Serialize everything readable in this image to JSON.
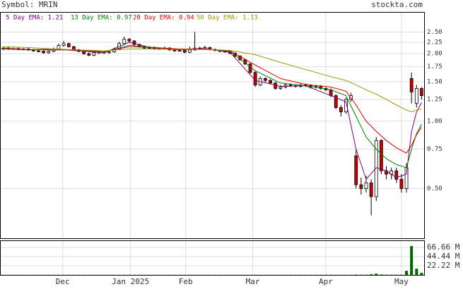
{
  "chart_data": {
    "type": "candlestick",
    "symbol_label": "Symbol: MRIN",
    "site": "stockta.com",
    "log_scale": true,
    "grid": true,
    "up_color": "#ffffff",
    "down_color": "#cc0000",
    "volume_color": "#006600",
    "xlim": [
      0,
      168
    ],
    "xticks": [
      {
        "value": 24.6,
        "label": "Dec"
      },
      {
        "value": 51.5,
        "label": "Jan 2025"
      },
      {
        "value": 73.4,
        "label": "Feb"
      },
      {
        "value": 100,
        "label": "Mar"
      },
      {
        "value": 129,
        "label": "Apr"
      },
      {
        "value": 159,
        "label": "May"
      }
    ],
    "ylim": [
      0.3,
      3.05
    ],
    "yticks": [
      {
        "value": 0.5,
        "label": "0.50"
      },
      {
        "value": 0.75,
        "label": "0.75"
      },
      {
        "value": 1,
        "label": "1.00"
      },
      {
        "value": 1.25,
        "label": "1.25"
      },
      {
        "value": 1.5,
        "label": "1.50"
      },
      {
        "value": 1.75,
        "label": "1.75"
      },
      {
        "value": 2,
        "label": "2.00"
      },
      {
        "value": 2.25,
        "label": "2.25"
      },
      {
        "value": 2.5,
        "label": "2.50"
      }
    ],
    "vlim": [
      0,
      82
    ],
    "vticks": [
      {
        "value": 22.22,
        "label": "22.22 M"
      },
      {
        "value": 44.44,
        "label": "44.44 M"
      },
      {
        "value": 66.66,
        "label": "66.66 M"
      }
    ],
    "x": [
      1,
      3,
      5,
      7,
      9,
      11,
      13,
      15,
      17,
      19,
      21,
      23,
      25,
      27,
      29,
      31,
      33,
      35,
      37,
      39,
      41,
      43,
      45,
      47,
      49,
      51,
      53,
      55,
      57,
      59,
      61,
      63,
      65,
      67,
      69,
      71,
      73,
      75,
      77,
      79,
      81,
      83,
      85,
      87,
      89,
      91,
      93,
      95,
      97,
      99,
      101,
      103,
      105,
      107,
      109,
      111,
      113,
      115,
      117,
      119,
      121,
      123,
      125,
      127,
      129,
      131,
      133,
      135,
      137,
      139,
      141,
      143,
      145,
      147,
      149,
      151,
      153,
      155,
      157,
      159,
      161,
      163,
      165,
      167
    ],
    "open": [
      2.1,
      2.12,
      2.1,
      2.11,
      2.09,
      2.1,
      2.08,
      2.06,
      2.05,
      2.02,
      2.05,
      2.1,
      2.18,
      2.22,
      2.15,
      2.08,
      2.05,
      2.0,
      1.97,
      2.02,
      2.03,
      2.02,
      2.04,
      2.1,
      2.22,
      2.32,
      2.28,
      2.2,
      2.15,
      2.12,
      2.13,
      2.1,
      2.11,
      2.12,
      2.08,
      2.06,
      2.07,
      2.03,
      2.08,
      2.12,
      2.1,
      2.13,
      2.09,
      2.07,
      2.05,
      2.04,
      2.01,
      1.95,
      1.88,
      1.8,
      1.65,
      1.45,
      1.55,
      1.52,
      1.48,
      1.4,
      1.42,
      1.45,
      1.44,
      1.43,
      1.45,
      1.44,
      1.42,
      1.43,
      1.4,
      1.38,
      1.3,
      1.15,
      1.1,
      1.25,
      0.7,
      0.52,
      0.5,
      0.53,
      0.46,
      0.82,
      0.6,
      0.58,
      0.6,
      0.55,
      0.5,
      1.55,
      1.2,
      1.4
    ],
    "high": [
      2.15,
      2.14,
      2.13,
      2.13,
      2.12,
      2.12,
      2.1,
      2.08,
      2.07,
      2.07,
      2.13,
      2.22,
      2.28,
      2.24,
      2.17,
      2.1,
      2.07,
      2.03,
      2.04,
      2.06,
      2.06,
      2.06,
      2.13,
      2.26,
      2.38,
      2.35,
      2.3,
      2.22,
      2.18,
      2.16,
      2.16,
      2.13,
      2.15,
      2.14,
      2.1,
      2.09,
      2.09,
      2.15,
      2.5,
      2.15,
      2.17,
      2.15,
      2.11,
      2.09,
      2.07,
      2.06,
      2.03,
      1.97,
      1.9,
      1.82,
      1.67,
      1.58,
      1.57,
      1.54,
      1.5,
      1.45,
      1.48,
      1.47,
      1.46,
      1.47,
      1.47,
      1.46,
      1.45,
      1.45,
      1.42,
      1.4,
      1.32,
      1.18,
      1.27,
      1.34,
      0.75,
      0.56,
      0.57,
      0.55,
      0.85,
      0.83,
      0.63,
      0.62,
      0.62,
      0.58,
      0.65,
      1.65,
      1.45,
      1.42
    ],
    "low": [
      2.07,
      2.08,
      2.08,
      2.07,
      2.07,
      2.06,
      2.04,
      2.03,
      2.0,
      2.0,
      2.03,
      2.08,
      2.15,
      2.13,
      2.06,
      2.03,
      1.98,
      1.95,
      1.95,
      2.0,
      2.0,
      2.0,
      2.02,
      2.08,
      2.2,
      2.25,
      2.18,
      2.13,
      2.1,
      2.1,
      2.08,
      2.08,
      2.09,
      2.06,
      2.04,
      2.04,
      2.01,
      2.01,
      2.06,
      2.08,
      2.08,
      2.07,
      2.05,
      2.03,
      2.02,
      1.99,
      1.93,
      1.86,
      1.78,
      1.63,
      1.42,
      1.43,
      1.49,
      1.46,
      1.38,
      1.38,
      1.4,
      1.42,
      1.41,
      1.41,
      1.42,
      1.4,
      1.4,
      1.38,
      1.36,
      1.28,
      1.13,
      1.05,
      1.08,
      1.22,
      0.5,
      0.47,
      0.48,
      0.38,
      0.44,
      0.58,
      0.55,
      0.55,
      0.53,
      0.48,
      0.48,
      1.2,
      1.15,
      1.25
    ],
    "close": [
      2.12,
      2.1,
      2.11,
      2.09,
      2.1,
      2.08,
      2.06,
      2.05,
      2.02,
      2.05,
      2.1,
      2.18,
      2.22,
      2.15,
      2.08,
      2.05,
      2.0,
      1.97,
      2.02,
      2.03,
      2.02,
      2.04,
      2.1,
      2.22,
      2.32,
      2.28,
      2.2,
      2.15,
      2.12,
      2.13,
      2.1,
      2.11,
      2.12,
      2.08,
      2.06,
      2.07,
      2.03,
      2.08,
      2.12,
      2.1,
      2.13,
      2.09,
      2.07,
      2.05,
      2.04,
      2.01,
      1.95,
      1.88,
      1.8,
      1.65,
      1.45,
      1.55,
      1.52,
      1.48,
      1.4,
      1.42,
      1.45,
      1.44,
      1.43,
      1.45,
      1.44,
      1.42,
      1.43,
      1.4,
      1.38,
      1.3,
      1.15,
      1.1,
      1.25,
      1.3,
      0.52,
      0.5,
      0.53,
      0.46,
      0.82,
      0.6,
      0.58,
      0.6,
      0.55,
      0.5,
      0.62,
      1.35,
      1.4,
      1.3
    ],
    "volume": [
      0.3,
      0.3,
      0.3,
      0.3,
      0.3,
      0.3,
      0.3,
      0.3,
      0.3,
      0.3,
      0.3,
      0.3,
      0.3,
      0.3,
      0.3,
      0.3,
      0.3,
      0.3,
      0.3,
      0.3,
      0.3,
      0.3,
      0.3,
      0.3,
      0.3,
      0.3,
      0.3,
      0.3,
      0.3,
      0.3,
      0.3,
      0.3,
      0.3,
      0.3,
      0.3,
      0.3,
      0.3,
      0.3,
      0.3,
      0.3,
      0.3,
      0.3,
      0.3,
      0.3,
      0.3,
      0.3,
      0.3,
      0.3,
      0.3,
      0.3,
      0.3,
      0.3,
      0.3,
      0.3,
      0.3,
      0.3,
      0.3,
      0.3,
      0.3,
      0.3,
      0.3,
      0.3,
      0.3,
      0.3,
      0.3,
      0.3,
      0.3,
      0.3,
      0.3,
      0.3,
      0.8,
      0.5,
      0.5,
      1.5,
      3,
      1,
      0.5,
      0.5,
      0.5,
      0.5,
      10,
      70,
      15,
      5
    ],
    "lines": [
      {
        "name": "5 Day EMA: 1.21",
        "color": "#800080",
        "x": [
          1,
          11,
          21,
          31,
          41,
          51,
          61,
          71,
          81,
          91,
          101,
          111,
          121,
          131,
          137,
          141,
          145,
          149,
          153,
          157,
          161,
          163,
          165,
          167
        ],
        "values": [
          2.11,
          2.08,
          2.1,
          2.06,
          2.02,
          2.25,
          2.11,
          2.08,
          2.11,
          2.03,
          1.52,
          1.43,
          1.44,
          1.3,
          1.22,
          0.75,
          0.55,
          0.62,
          0.6,
          0.56,
          0.58,
          0.9,
          1.1,
          1.21
        ]
      },
      {
        "name": "13 Day EMA: 0.97",
        "color": "#008000",
        "x": [
          1,
          11,
          21,
          31,
          41,
          51,
          61,
          71,
          81,
          91,
          101,
          111,
          121,
          131,
          137,
          141,
          145,
          149,
          153,
          157,
          161,
          163,
          165,
          167
        ],
        "values": [
          2.1,
          2.08,
          2.08,
          2.08,
          2.03,
          2.18,
          2.13,
          2.09,
          2.1,
          2.05,
          1.68,
          1.48,
          1.44,
          1.38,
          1.3,
          1.05,
          0.85,
          0.75,
          0.68,
          0.64,
          0.62,
          0.75,
          0.88,
          0.97
        ]
      },
      {
        "name": "20 Day EMA: 0.94",
        "color": "#dd0000",
        "x": [
          1,
          11,
          21,
          31,
          41,
          51,
          61,
          71,
          81,
          91,
          101,
          111,
          121,
          131,
          137,
          141,
          145,
          149,
          153,
          157,
          161,
          163,
          165,
          167
        ],
        "values": [
          2.12,
          2.09,
          2.08,
          2.08,
          2.04,
          2.15,
          2.13,
          2.1,
          2.1,
          2.06,
          1.78,
          1.55,
          1.46,
          1.42,
          1.36,
          1.18,
          1.0,
          0.9,
          0.82,
          0.76,
          0.72,
          0.78,
          0.87,
          0.94
        ]
      },
      {
        "name": "50 Day EMA: 1.13",
        "color": "#999900",
        "x": [
          1,
          11,
          21,
          31,
          41,
          51,
          61,
          71,
          81,
          91,
          101,
          111,
          121,
          131,
          137,
          141,
          145,
          149,
          153,
          157,
          161,
          163,
          165,
          167
        ],
        "values": [
          2.15,
          2.13,
          2.1,
          2.08,
          2.06,
          2.1,
          2.1,
          2.09,
          2.09,
          2.07,
          1.98,
          1.83,
          1.7,
          1.58,
          1.52,
          1.45,
          1.38,
          1.32,
          1.25,
          1.18,
          1.12,
          1.1,
          1.12,
          1.13
        ]
      }
    ]
  }
}
